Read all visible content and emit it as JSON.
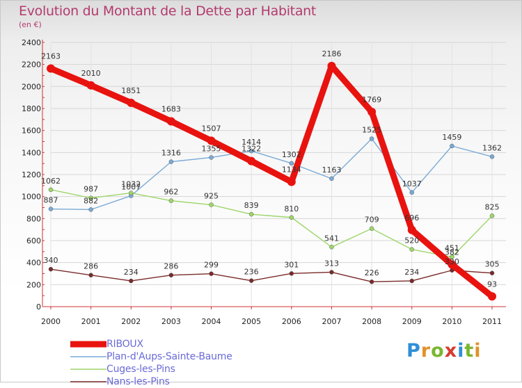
{
  "header": {
    "title": "Evolution du Montant de la Dette par Habitant",
    "subtitle": "(en €)"
  },
  "logo": {
    "text": "Proxiti",
    "letters": [
      {
        "ch": "P",
        "color": "#2f8fd6"
      },
      {
        "ch": "r",
        "color": "#e0932a"
      },
      {
        "ch": "o",
        "color": "#7ab62f"
      },
      {
        "ch": "x",
        "color": "#d63b2f"
      },
      {
        "ch": "i",
        "color": "#2f8fd6"
      },
      {
        "ch": "t",
        "color": "#7ab62f"
      },
      {
        "ch": "i",
        "color": "#e0932a"
      }
    ]
  },
  "chart_data": {
    "type": "line",
    "title": "Evolution du Montant de la Dette par Habitant",
    "subtitle": "(en €)",
    "x": [
      "2000",
      "2001",
      "2002",
      "2003",
      "2004",
      "2005",
      "2006",
      "2007",
      "2008",
      "2009",
      "2010",
      "2011"
    ],
    "ylim": [
      0,
      2400
    ],
    "yticks": [
      0,
      200,
      400,
      600,
      800,
      1000,
      1200,
      1400,
      1600,
      1800,
      2000,
      2200,
      2400
    ],
    "grid": true,
    "legend_position": "bottom-left",
    "series": [
      {
        "name": "RIBOUX",
        "color": "#e8130f",
        "values": [
          2163,
          2010,
          1851,
          1683,
          1507,
          1322,
          1134,
          2186,
          1769,
          696,
          382,
          93
        ],
        "labels": [
          "2163",
          "2010",
          "1851",
          "1683",
          "1507",
          "1322",
          "1134",
          "2186",
          "1769",
          "696",
          "382",
          "93"
        ]
      },
      {
        "name": "Plan-d'Aups-Sainte-Baume",
        "color": "#7aaad6",
        "values": [
          887,
          882,
          1007,
          1316,
          1355,
          1414,
          1302,
          1163,
          1525,
          1037,
          1459,
          1362
        ],
        "labels": [
          "887",
          "882",
          "1007",
          "1316",
          "1355",
          "1414",
          "1302",
          "1163",
          "1525",
          "1037",
          "1459",
          "1362"
        ]
      },
      {
        "name": "Cuges-les-Pins",
        "color": "#9ed66a",
        "values": [
          1062,
          987,
          1032,
          962,
          925,
          839,
          810,
          541,
          709,
          520,
          451,
          825
        ],
        "labels": [
          "1062",
          "987",
          "1032",
          "962",
          "925",
          "839",
          "810",
          "541",
          "709",
          "520",
          "451",
          "825"
        ]
      },
      {
        "name": "Nans-les-Pins",
        "color": "#7a2a2a",
        "values": [
          340,
          286,
          234,
          286,
          299,
          236,
          301,
          313,
          226,
          234,
          330,
          305
        ],
        "labels": [
          "340",
          "286",
          "234",
          "286",
          "299",
          "236",
          "301",
          "313",
          "226",
          "234",
          "330",
          "305"
        ]
      }
    ]
  }
}
